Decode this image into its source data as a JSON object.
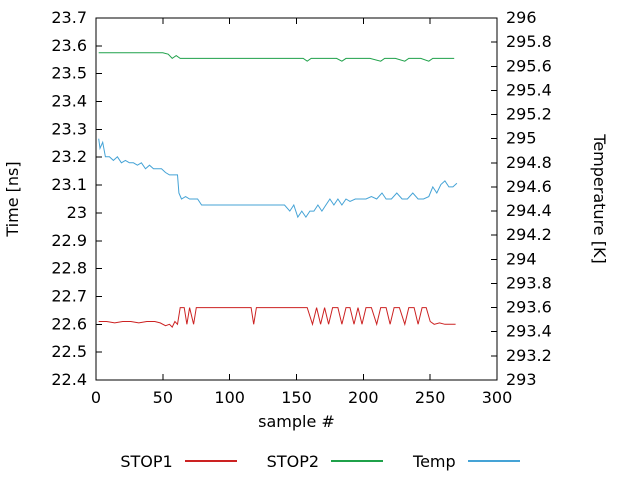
{
  "chart_data": {
    "type": "line",
    "title": "",
    "xlabel": "sample #",
    "ylabel": "Time [ns]",
    "y2label": "Temperature [K]",
    "xlim": [
      0,
      300
    ],
    "xtick": 50,
    "ylim": [
      22.4,
      23.7
    ],
    "ytick": 0.1,
    "y2lim": [
      293,
      296
    ],
    "y2tick": 0.2,
    "grid": false,
    "legend_position": "bottom",
    "series": [
      {
        "name": "STOP1",
        "axis": "left",
        "color": "#cc2222",
        "points": [
          [
            2,
            22.61
          ],
          [
            8,
            22.61
          ],
          [
            14,
            22.605
          ],
          [
            20,
            22.61
          ],
          [
            26,
            22.61
          ],
          [
            32,
            22.605
          ],
          [
            38,
            22.61
          ],
          [
            44,
            22.61
          ],
          [
            48,
            22.605
          ],
          [
            52,
            22.595
          ],
          [
            55,
            22.6
          ],
          [
            57,
            22.59
          ],
          [
            59,
            22.61
          ],
          [
            61,
            22.6
          ],
          [
            63,
            22.66
          ],
          [
            66,
            22.66
          ],
          [
            68,
            22.6
          ],
          [
            70,
            22.66
          ],
          [
            73,
            22.6
          ],
          [
            75,
            22.66
          ],
          [
            80,
            22.66
          ],
          [
            88,
            22.66
          ],
          [
            96,
            22.66
          ],
          [
            104,
            22.66
          ],
          [
            112,
            22.66
          ],
          [
            116,
            22.66
          ],
          [
            118,
            22.6
          ],
          [
            120,
            22.66
          ],
          [
            128,
            22.66
          ],
          [
            136,
            22.66
          ],
          [
            144,
            22.66
          ],
          [
            152,
            22.66
          ],
          [
            158,
            22.66
          ],
          [
            162,
            22.6
          ],
          [
            165,
            22.66
          ],
          [
            168,
            22.6
          ],
          [
            171,
            22.66
          ],
          [
            174,
            22.6
          ],
          [
            177,
            22.66
          ],
          [
            181,
            22.66
          ],
          [
            184,
            22.6
          ],
          [
            187,
            22.66
          ],
          [
            190,
            22.66
          ],
          [
            193,
            22.6
          ],
          [
            196,
            22.66
          ],
          [
            199,
            22.6
          ],
          [
            202,
            22.66
          ],
          [
            206,
            22.66
          ],
          [
            210,
            22.6
          ],
          [
            213,
            22.66
          ],
          [
            217,
            22.66
          ],
          [
            220,
            22.6
          ],
          [
            223,
            22.66
          ],
          [
            227,
            22.66
          ],
          [
            231,
            22.6
          ],
          [
            234,
            22.66
          ],
          [
            238,
            22.66
          ],
          [
            241,
            22.6
          ],
          [
            244,
            22.66
          ],
          [
            247,
            22.66
          ],
          [
            250,
            22.61
          ],
          [
            253,
            22.6
          ],
          [
            257,
            22.605
          ],
          [
            261,
            22.6
          ],
          [
            265,
            22.6
          ],
          [
            269,
            22.6
          ]
        ]
      },
      {
        "name": "STOP2",
        "axis": "left",
        "color": "#1fa14a",
        "points": [
          [
            2,
            23.575
          ],
          [
            10,
            23.575
          ],
          [
            18,
            23.575
          ],
          [
            26,
            23.575
          ],
          [
            34,
            23.575
          ],
          [
            42,
            23.575
          ],
          [
            50,
            23.575
          ],
          [
            54,
            23.57
          ],
          [
            57,
            23.555
          ],
          [
            60,
            23.565
          ],
          [
            63,
            23.555
          ],
          [
            67,
            23.555
          ],
          [
            75,
            23.555
          ],
          [
            85,
            23.555
          ],
          [
            95,
            23.555
          ],
          [
            105,
            23.555
          ],
          [
            115,
            23.555
          ],
          [
            125,
            23.555
          ],
          [
            135,
            23.555
          ],
          [
            145,
            23.555
          ],
          [
            155,
            23.555
          ],
          [
            158,
            23.545
          ],
          [
            161,
            23.555
          ],
          [
            170,
            23.555
          ],
          [
            180,
            23.555
          ],
          [
            184,
            23.545
          ],
          [
            187,
            23.555
          ],
          [
            196,
            23.555
          ],
          [
            205,
            23.555
          ],
          [
            213,
            23.545
          ],
          [
            216,
            23.555
          ],
          [
            224,
            23.555
          ],
          [
            231,
            23.545
          ],
          [
            234,
            23.555
          ],
          [
            243,
            23.555
          ],
          [
            249,
            23.545
          ],
          [
            252,
            23.555
          ],
          [
            260,
            23.555
          ],
          [
            268,
            23.555
          ]
        ]
      },
      {
        "name": "Temp",
        "axis": "right",
        "color": "#45a3d6",
        "points": [
          [
            2,
            295.0
          ],
          [
            3,
            294.92
          ],
          [
            5,
            294.97
          ],
          [
            7,
            294.85
          ],
          [
            10,
            294.85
          ],
          [
            13,
            294.82
          ],
          [
            16,
            294.85
          ],
          [
            19,
            294.8
          ],
          [
            22,
            294.82
          ],
          [
            25,
            294.8
          ],
          [
            28,
            294.8
          ],
          [
            31,
            294.78
          ],
          [
            34,
            294.8
          ],
          [
            37,
            294.75
          ],
          [
            40,
            294.78
          ],
          [
            43,
            294.75
          ],
          [
            46,
            294.75
          ],
          [
            49,
            294.75
          ],
          [
            52,
            294.72
          ],
          [
            55,
            294.7
          ],
          [
            58,
            294.7
          ],
          [
            61,
            294.7
          ],
          [
            62,
            294.55
          ],
          [
            64,
            294.5
          ],
          [
            67,
            294.52
          ],
          [
            70,
            294.5
          ],
          [
            73,
            294.5
          ],
          [
            76,
            294.5
          ],
          [
            79,
            294.45
          ],
          [
            85,
            294.45
          ],
          [
            92,
            294.45
          ],
          [
            99,
            294.45
          ],
          [
            106,
            294.45
          ],
          [
            113,
            294.45
          ],
          [
            120,
            294.45
          ],
          [
            127,
            294.45
          ],
          [
            134,
            294.45
          ],
          [
            141,
            294.45
          ],
          [
            145,
            294.4
          ],
          [
            148,
            294.45
          ],
          [
            151,
            294.35
          ],
          [
            154,
            294.4
          ],
          [
            157,
            294.35
          ],
          [
            160,
            294.4
          ],
          [
            163,
            294.4
          ],
          [
            166,
            294.45
          ],
          [
            169,
            294.4
          ],
          [
            172,
            294.45
          ],
          [
            175,
            294.5
          ],
          [
            178,
            294.45
          ],
          [
            181,
            294.5
          ],
          [
            184,
            294.45
          ],
          [
            187,
            294.5
          ],
          [
            190,
            294.48
          ],
          [
            194,
            294.5
          ],
          [
            198,
            294.5
          ],
          [
            202,
            294.5
          ],
          [
            206,
            294.52
          ],
          [
            210,
            294.5
          ],
          [
            214,
            294.55
          ],
          [
            217,
            294.5
          ],
          [
            221,
            294.5
          ],
          [
            225,
            294.55
          ],
          [
            229,
            294.5
          ],
          [
            233,
            294.5
          ],
          [
            237,
            294.55
          ],
          [
            241,
            294.5
          ],
          [
            245,
            294.5
          ],
          [
            249,
            294.52
          ],
          [
            252,
            294.6
          ],
          [
            255,
            294.55
          ],
          [
            258,
            294.62
          ],
          [
            261,
            294.65
          ],
          [
            264,
            294.6
          ],
          [
            267,
            294.6
          ],
          [
            270,
            294.63
          ]
        ]
      }
    ]
  }
}
